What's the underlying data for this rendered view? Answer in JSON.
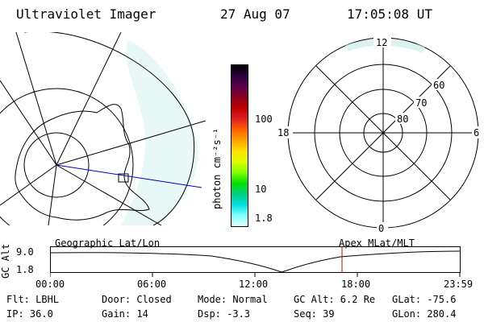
{
  "header": {
    "instrument": "Ultraviolet Imager",
    "date": "27 Aug 07",
    "time": "17:05:08 UT"
  },
  "colorbar": {
    "label": "photon cm⁻²s⁻¹",
    "ticks": [
      "100",
      "10",
      "1.8"
    ],
    "colors": [
      "#000000",
      "#2a0040",
      "#5a004a",
      "#8a0020",
      "#c00000",
      "#e02020",
      "#ff6000",
      "#ffa000",
      "#ffe000",
      "#e0ff00",
      "#80ff00",
      "#00e000",
      "#00d080",
      "#00e0e0",
      "#80ffff",
      "#e0ffff"
    ]
  },
  "polar": {
    "mlt_top": "12",
    "mlt_left": "18",
    "mlt_right": "6",
    "mlt_bottom": "0",
    "lat_labels": [
      "60",
      "70",
      "80"
    ]
  },
  "timeline": {
    "left_label": "Geographic Lat/Lon",
    "right_label": "Apex MLat/MLT",
    "axis_label": "GC Alt",
    "y_ticks": [
      "9.0",
      "1.8"
    ],
    "x_ticks": [
      "00:00",
      "06:00",
      "12:00",
      "18:00",
      "23:59"
    ],
    "marker_time": "17:05"
  },
  "info": {
    "filter": "Flt: LBHL",
    "ip": "IP: 36.0",
    "door": "Door: Closed",
    "gain": "Gain: 14",
    "mode": "Mode: Normal",
    "dsp": "Dsp:    -3.3",
    "gcalt": "GC Alt: 6.2 Re",
    "seq": "Seq: 39",
    "glat": "GLat: -75.6",
    "glon": "GLon: 280.4"
  }
}
